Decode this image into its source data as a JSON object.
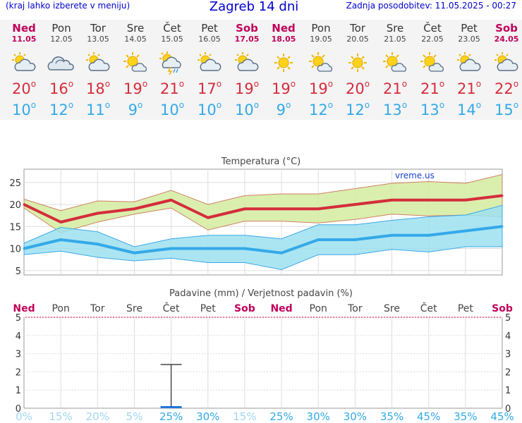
{
  "header": {
    "left_note": "(kraj lahko izberete v meniju)",
    "title": "Zagreb 14 dni",
    "updated": "Zadnja posodobitev: 11.05.2025 - 00:27"
  },
  "days": [
    {
      "name": "Ned",
      "date": "11.05",
      "weekend": true,
      "icon": "sun-cloud-icon",
      "max": "20",
      "min": "10"
    },
    {
      "name": "Pon",
      "date": "12.05",
      "weekend": false,
      "icon": "cloud-icon",
      "max": "16",
      "min": "12"
    },
    {
      "name": "Tor",
      "date": "13.05",
      "weekend": false,
      "icon": "sun-cloud-icon",
      "max": "18",
      "min": "11"
    },
    {
      "name": "Sre",
      "date": "14.05",
      "weekend": false,
      "icon": "sun-small-cloud-icon",
      "max": "19",
      "min": "9"
    },
    {
      "name": "Čet",
      "date": "15.05",
      "weekend": false,
      "icon": "storm-rain-icon",
      "max": "21",
      "min": "10"
    },
    {
      "name": "Pet",
      "date": "16.05",
      "weekend": false,
      "icon": "sun-cloud-icon",
      "max": "17",
      "min": "10"
    },
    {
      "name": "Sob",
      "date": "17.05",
      "weekend": true,
      "icon": "sun-cloud-icon",
      "max": "19",
      "min": "10"
    },
    {
      "name": "Ned",
      "date": "18.05",
      "weekend": true,
      "icon": "sun-icon",
      "max": "19",
      "min": "9"
    },
    {
      "name": "Pon",
      "date": "19.05",
      "weekend": false,
      "icon": "sun-small-cloud-icon",
      "max": "19",
      "min": "12"
    },
    {
      "name": "Tor",
      "date": "20.05",
      "weekend": false,
      "icon": "sun-icon",
      "max": "20",
      "min": "12"
    },
    {
      "name": "Sre",
      "date": "21.05",
      "weekend": false,
      "icon": "sun-small-cloud-icon",
      "max": "21",
      "min": "13"
    },
    {
      "name": "Čet",
      "date": "22.05",
      "weekend": false,
      "icon": "sun-small-cloud-icon",
      "max": "21",
      "min": "13"
    },
    {
      "name": "Pet",
      "date": "23.05",
      "weekend": false,
      "icon": "sun-cloud-icon",
      "max": "21",
      "min": "14"
    },
    {
      "name": "Sob",
      "date": "24.05",
      "weekend": true,
      "icon": "sun-cloud-icon",
      "max": "22",
      "min": "15"
    }
  ],
  "chart_data": [
    {
      "type": "line",
      "title": "Temperatura (°C)",
      "watermark": "vreme.us",
      "ylim": [
        4,
        28
      ],
      "yticks": [
        5,
        10,
        15,
        20,
        25
      ],
      "x": [
        1,
        2,
        3,
        4,
        5,
        6,
        7,
        8,
        9,
        10,
        11,
        12,
        13,
        14
      ],
      "series": [
        {
          "name": "max",
          "color": "#d42d3c",
          "values": [
            20,
            16,
            18,
            19,
            21,
            17,
            19,
            19,
            19,
            20,
            21,
            21,
            21,
            22
          ]
        },
        {
          "name": "min",
          "color": "#34a9e8",
          "values": [
            10,
            12,
            11,
            9,
            10,
            10,
            10,
            9,
            12,
            12,
            13,
            13,
            14,
            15
          ]
        }
      ],
      "bands": [
        {
          "color": "#d4eca0",
          "upper": [
            21.2,
            18.6,
            20.8,
            20.6,
            23.2,
            20.0,
            22.0,
            22.4,
            22.4,
            23.6,
            24.8,
            25.2,
            24.8,
            26.8
          ],
          "lower": [
            19.2,
            13.6,
            16.0,
            17.8,
            19.2,
            14.2,
            16.2,
            16.2,
            15.8,
            16.6,
            17.8,
            17.4,
            17.6,
            17.2
          ]
        },
        {
          "color": "#9ee0f0",
          "upper": [
            11.2,
            14.8,
            13.8,
            10.4,
            12.2,
            13.0,
            13.0,
            12.2,
            15.4,
            15.4,
            16.4,
            17.2,
            17.6,
            19.8
          ],
          "lower": [
            8.6,
            9.4,
            8.0,
            7.2,
            7.8,
            6.8,
            6.8,
            5.2,
            8.6,
            8.6,
            9.8,
            9.2,
            10.4,
            10.4
          ]
        }
      ]
    },
    {
      "type": "bar",
      "title": "Padavine (mm) / Verjetnost padavin (%)",
      "ylim": [
        0,
        5
      ],
      "yticks": [
        0,
        1,
        2,
        3,
        4,
        5
      ],
      "categories": [
        "Ned",
        "Pon",
        "Tor",
        "Sre",
        "Čet",
        "Pet",
        "Sob",
        "Ned",
        "Pon",
        "Tor",
        "Sre",
        "Čet",
        "Pet",
        "Sob"
      ],
      "weekend": [
        true,
        false,
        false,
        false,
        false,
        false,
        true,
        true,
        false,
        false,
        false,
        false,
        false,
        true
      ],
      "values": [
        0,
        0,
        0,
        0,
        0.1,
        0,
        0,
        0,
        0,
        0,
        0,
        0,
        0,
        0
      ],
      "error_max": [
        null,
        null,
        null,
        null,
        2.4,
        null,
        null,
        null,
        null,
        null,
        null,
        null,
        null,
        null
      ],
      "probability": [
        "0%",
        "15%",
        "20%",
        "5%",
        "25%",
        "30%",
        "15%",
        "25%",
        "30%",
        "30%",
        "35%",
        "45%",
        "35%",
        "45%"
      ],
      "probability_values": [
        0,
        15,
        20,
        5,
        25,
        30,
        15,
        25,
        30,
        30,
        35,
        45,
        35,
        45
      ]
    }
  ]
}
